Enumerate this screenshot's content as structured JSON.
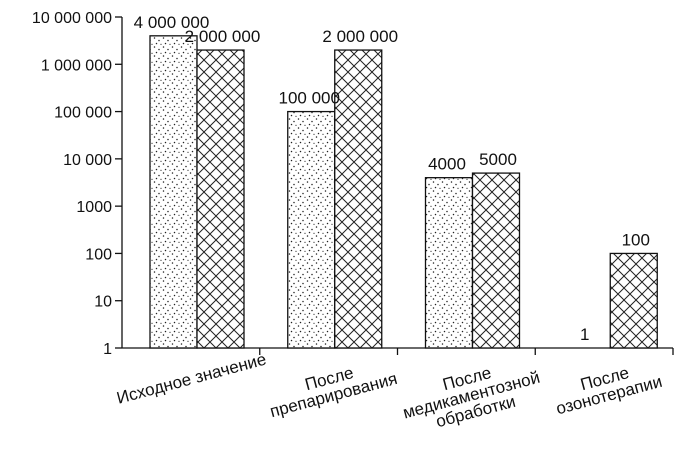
{
  "chart_data": {
    "type": "bar",
    "yscale": "log",
    "ylim": [
      1,
      10000000
    ],
    "grid": false,
    "legend": "none",
    "y_tick_labels": [
      "1",
      "10",
      "100",
      "1000",
      "10 000",
      "100 000",
      "1 000 000",
      "10 000 000"
    ],
    "categories": [
      [
        "Исходное значение"
      ],
      [
        "После",
        "препарирования"
      ],
      [
        "После",
        "медикаментозной",
        "обработки"
      ],
      [
        "После",
        "озонотерапии"
      ]
    ],
    "series": [
      {
        "fill": "dots",
        "values": [
          4000000,
          100000,
          4000,
          1
        ],
        "value_labels": [
          "4 000 000",
          "100 000",
          "4000",
          "1"
        ]
      },
      {
        "fill": "crosshatch",
        "values": [
          2000000,
          2000000,
          5000,
          100
        ],
        "value_labels": [
          "2 000 000",
          "2 000 000",
          "5000",
          "100"
        ]
      }
    ],
    "colors": {
      "axis": "#111111",
      "bar_fill": "#ffffff",
      "pattern": "#222222"
    }
  }
}
